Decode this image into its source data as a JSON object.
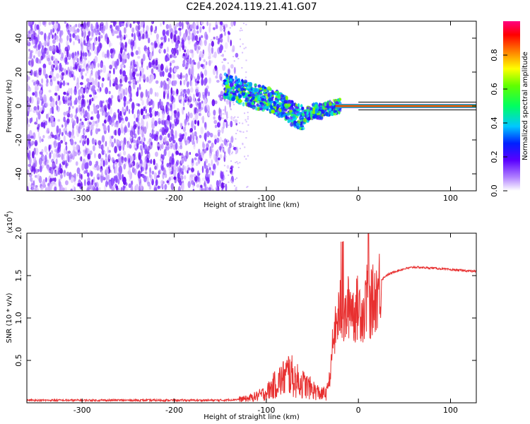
{
  "title": "C2E4.2024.119.21.41.G07",
  "chart_data": [
    {
      "type": "heatmap",
      "xlabel": "Height of straight line (km)",
      "ylabel": "Frequency (Hz)",
      "xlim": [
        -360,
        128
      ],
      "ylim": [
        -50,
        50
      ],
      "xticks": [
        "-300",
        "-200",
        "-100",
        "0",
        "100"
      ],
      "yticks": [
        "-40",
        "-20",
        "0",
        "20",
        "40"
      ],
      "colorbar": {
        "label": "Normalized spectral amplitude",
        "range": [
          0,
          1
        ],
        "ticks": [
          "0.0",
          "0.2",
          "0.4",
          "0.6",
          "0.8"
        ]
      },
      "features": {
        "noise_region_x": [
          -360,
          -140
        ],
        "drifting_signal": {
          "x": [
            -145,
            -130,
            -115,
            -100,
            -90,
            -80,
            -70,
            -60,
            -50,
            -40,
            -30,
            -20,
            -10,
            0,
            10,
            30,
            60,
            100,
            128
          ],
          "freq_hz": [
            12,
            9,
            6,
            4,
            2,
            -1,
            -5,
            -7,
            -3,
            -3,
            -1,
            0,
            0,
            1,
            0,
            0,
            0,
            0,
            0
          ]
        }
      }
    },
    {
      "type": "line",
      "xlabel": "Height of straight line (km)",
      "ylabel": "SNR (10 * v/v)",
      "yscale_label": "(x10",
      "yscale_exp": "4",
      "yscale_close": ")",
      "xlim": [
        -360,
        128
      ],
      "ylim": [
        0,
        2.0
      ],
      "xticks": [
        "-300",
        "-200",
        "-100",
        "0",
        "100"
      ],
      "yticks": [
        "0.5",
        "1.0",
        "1.5",
        "2.0"
      ],
      "series": [
        {
          "color": "#e83030",
          "x": [
            -360,
            -300,
            -250,
            -200,
            -150,
            -130,
            -120,
            -110,
            -100,
            -90,
            -80,
            -75,
            -70,
            -60,
            -50,
            -40,
            -35,
            -30,
            -28,
            -25,
            -22,
            -20,
            -17,
            -15,
            -12,
            -10,
            -8,
            -5,
            -2,
            0,
            3,
            6,
            9,
            10,
            12,
            15,
            18,
            20,
            25,
            30,
            40,
            50,
            60,
            80,
            100,
            128
          ],
          "y": [
            0.03,
            0.03,
            0.03,
            0.03,
            0.03,
            0.04,
            0.05,
            0.08,
            0.12,
            0.22,
            0.3,
            0.36,
            0.28,
            0.22,
            0.16,
            0.1,
            0.12,
            0.35,
            0.7,
            0.85,
            1.0,
            1.1,
            1.05,
            0.95,
            1.1,
            1.15,
            1.2,
            1.05,
            1.1,
            1.15,
            1.1,
            1.05,
            1.2,
            1.3,
            1.1,
            1.2,
            1.25,
            1.3,
            1.45,
            1.5,
            1.55,
            1.58,
            1.6,
            1.59,
            1.57,
            1.55
          ]
        }
      ]
    }
  ]
}
